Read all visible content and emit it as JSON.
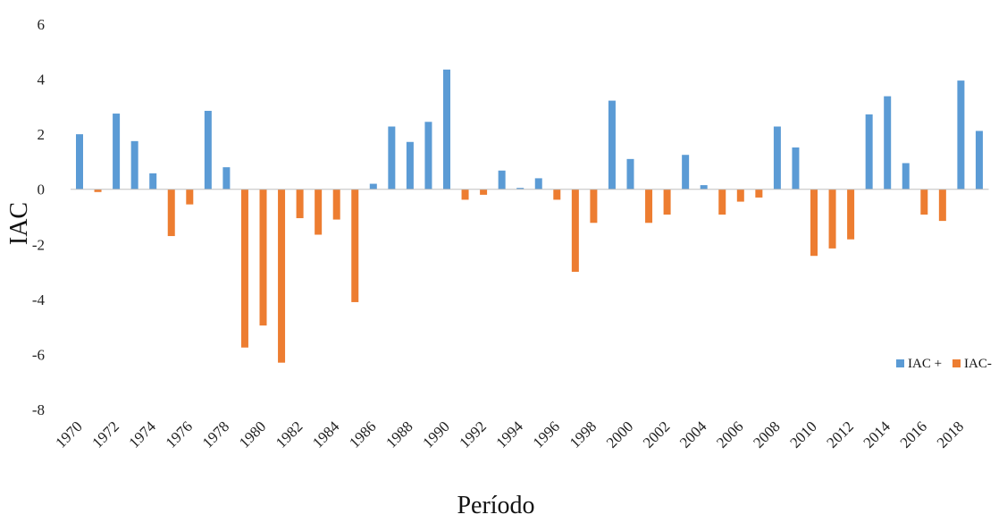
{
  "chart_data": {
    "type": "bar",
    "ylabel": "IAC",
    "xlabel": "Período",
    "ylim": [
      -8,
      6
    ],
    "yticks": [
      6,
      4,
      2,
      0,
      -2,
      -4,
      -6,
      -8
    ],
    "grid": false,
    "legend_position": "right",
    "x": [
      1970,
      1971,
      1972,
      1973,
      1974,
      1975,
      1976,
      1977,
      1978,
      1979,
      1980,
      1981,
      1982,
      1983,
      1984,
      1985,
      1986,
      1987,
      1988,
      1989,
      1990,
      1991,
      1992,
      1993,
      1994,
      1995,
      1996,
      1997,
      1998,
      1999,
      2000,
      2001,
      2002,
      2003,
      2004,
      2005,
      2006,
      2007,
      2008,
      2009,
      2010,
      2011,
      2012,
      2013,
      2014,
      2015,
      2016,
      2017,
      2018,
      2019
    ],
    "xtick_labels": [
      "1970",
      "1972",
      "1974",
      "1976",
      "1978",
      "1980",
      "1982",
      "1984",
      "1986",
      "1988",
      "1990",
      "1992",
      "1994",
      "1996",
      "1998",
      "2000",
      "2002",
      "2004",
      "2006",
      "2008",
      "2010",
      "2012",
      "2014",
      "2016",
      "2018"
    ],
    "values": [
      2.0,
      -0.1,
      2.75,
      1.75,
      0.58,
      -1.7,
      -0.55,
      2.85,
      0.8,
      -5.75,
      -4.95,
      -6.3,
      -1.05,
      -1.65,
      -1.1,
      -4.1,
      0.2,
      2.28,
      1.72,
      2.45,
      4.35,
      -0.38,
      -0.2,
      0.68,
      0.05,
      0.4,
      -0.38,
      -3.0,
      -1.22,
      3.22,
      1.1,
      -1.22,
      -0.92,
      1.25,
      0.15,
      -0.92,
      -0.45,
      -0.3,
      2.28,
      1.52,
      -2.42,
      -2.15,
      -1.82,
      2.72,
      3.38,
      0.95,
      -0.92,
      -1.15,
      3.95,
      2.12
    ],
    "series": [
      {
        "name": "IAC +",
        "color": "#5b9bd5"
      },
      {
        "name": "IAC-",
        "color": "#ed7d31"
      }
    ]
  }
}
